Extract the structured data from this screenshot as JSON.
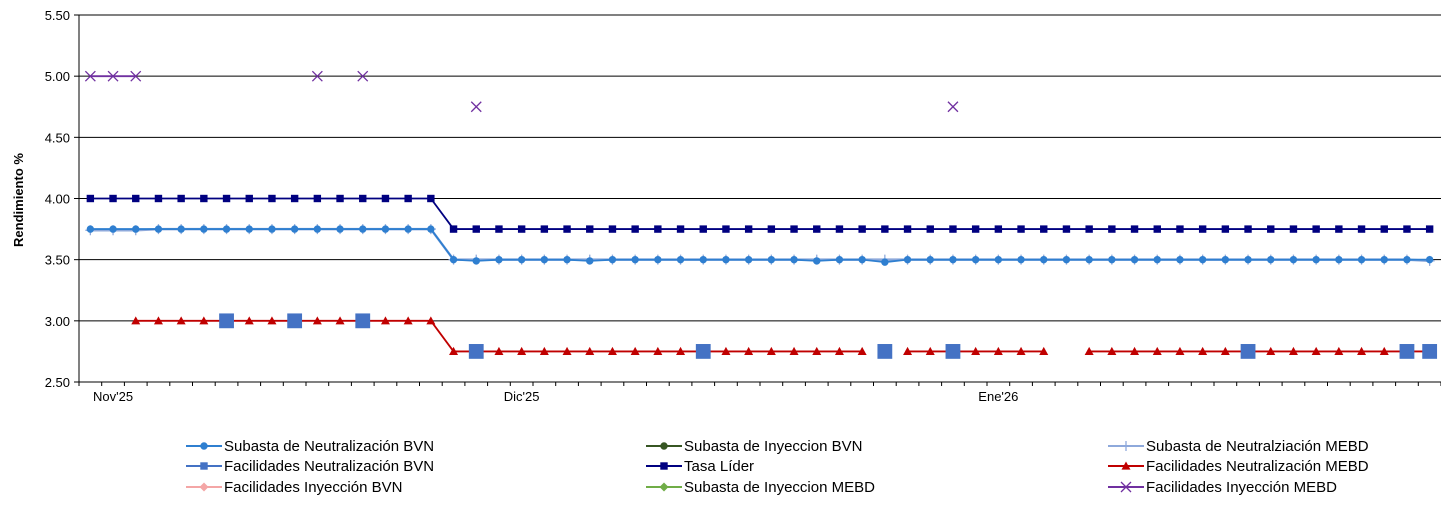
{
  "chart_data": {
    "type": "line",
    "ylabel": "Rendimiento %",
    "xlabel": "",
    "ylim": [
      2.5,
      5.5
    ],
    "yticks": [
      "5.50",
      "5.00",
      "4.50",
      "4.00",
      "3.50",
      "3.00",
      "2.50"
    ],
    "x_labels": [
      {
        "label": "Nov'25",
        "index": 1
      },
      {
        "label": "Dic'25",
        "index": 19
      },
      {
        "label": "Ene'26",
        "index": 40
      }
    ],
    "n_points": 60,
    "series": [
      {
        "name": "Subasta de Neutralización BVN",
        "color": "#2F7FD0",
        "marker": "circle",
        "values": [
          3.75,
          3.75,
          3.75,
          3.75,
          3.75,
          3.75,
          3.75,
          3.75,
          3.75,
          3.75,
          3.75,
          3.75,
          3.75,
          3.75,
          3.75,
          3.75,
          3.5,
          3.49,
          3.5,
          3.5,
          3.5,
          3.5,
          3.49,
          3.5,
          3.5,
          3.5,
          3.5,
          3.5,
          3.5,
          3.5,
          3.5,
          3.5,
          3.49,
          3.5,
          3.5,
          3.48,
          3.5,
          3.5,
          3.5,
          3.5,
          3.5,
          3.5,
          3.5,
          3.5,
          3.5,
          3.5,
          3.5,
          3.5,
          3.5,
          3.5,
          3.5,
          3.5,
          3.5,
          3.5,
          3.5,
          3.5,
          3.5,
          3.5,
          3.5,
          3.5
        ]
      },
      {
        "name": "Subasta de Inyeccion BVN",
        "color": "#375623",
        "marker": "circle",
        "values": []
      },
      {
        "name": "Subasta de Neutralziación MEBD",
        "color": "#8EA9DB",
        "marker": "plus",
        "values": [
          3.74,
          3.74,
          3.74,
          3.75,
          3.75,
          3.75,
          3.75,
          3.75,
          3.75,
          3.75,
          3.75,
          3.75,
          3.75,
          3.75,
          3.75,
          3.75,
          3.5,
          3.5,
          3.5,
          3.5,
          3.5,
          3.5,
          3.5,
          3.5,
          3.5,
          3.5,
          3.5,
          3.5,
          3.5,
          3.5,
          3.5,
          3.5,
          3.5,
          3.5,
          3.5,
          3.5,
          3.5,
          3.5,
          3.5,
          3.5,
          3.5,
          3.5,
          3.5,
          3.5,
          3.5,
          3.5,
          3.5,
          3.5,
          3.5,
          3.5,
          3.5,
          3.5,
          3.5,
          3.5,
          3.5,
          3.5,
          3.5,
          3.5,
          3.5,
          3.49
        ]
      },
      {
        "name": "Facilidades Neutralización BVN",
        "color": "#4472C4",
        "marker": "square",
        "values": [
          null,
          null,
          null,
          null,
          null,
          null,
          3.0,
          null,
          null,
          3.0,
          null,
          null,
          3.0,
          null,
          null,
          null,
          null,
          2.75,
          null,
          null,
          null,
          null,
          null,
          null,
          null,
          null,
          null,
          2.75,
          null,
          null,
          null,
          null,
          null,
          null,
          null,
          2.75,
          null,
          null,
          2.75,
          null,
          null,
          null,
          null,
          null,
          null,
          null,
          null,
          null,
          null,
          null,
          null,
          2.75,
          null,
          null,
          null,
          null,
          null,
          null,
          2.75,
          2.75
        ]
      },
      {
        "name": "Tasa Líder",
        "color": "#000080",
        "marker": "square",
        "values": [
          4.0,
          4.0,
          4.0,
          4.0,
          4.0,
          4.0,
          4.0,
          4.0,
          4.0,
          4.0,
          4.0,
          4.0,
          4.0,
          4.0,
          4.0,
          4.0,
          3.75,
          3.75,
          3.75,
          3.75,
          3.75,
          3.75,
          3.75,
          3.75,
          3.75,
          3.75,
          3.75,
          3.75,
          3.75,
          3.75,
          3.75,
          3.75,
          3.75,
          3.75,
          3.75,
          3.75,
          3.75,
          3.75,
          3.75,
          3.75,
          3.75,
          3.75,
          3.75,
          3.75,
          3.75,
          3.75,
          3.75,
          3.75,
          3.75,
          3.75,
          3.75,
          3.75,
          3.75,
          3.75,
          3.75,
          3.75,
          3.75,
          3.75,
          3.75,
          3.75
        ]
      },
      {
        "name": "Facilidades Neutralización MEBD",
        "color": "#C00000",
        "marker": "triangle",
        "values": [
          null,
          null,
          3.0,
          3.0,
          3.0,
          3.0,
          3.0,
          3.0,
          3.0,
          3.0,
          3.0,
          3.0,
          3.0,
          3.0,
          3.0,
          3.0,
          2.75,
          2.75,
          2.75,
          2.75,
          2.75,
          2.75,
          2.75,
          2.75,
          2.75,
          2.75,
          2.75,
          2.75,
          2.75,
          2.75,
          2.75,
          2.75,
          2.75,
          2.75,
          2.75,
          null,
          2.75,
          2.75,
          2.75,
          2.75,
          2.75,
          2.75,
          2.75,
          null,
          2.75,
          2.75,
          2.75,
          2.75,
          2.75,
          2.75,
          2.75,
          2.75,
          2.75,
          2.75,
          2.75,
          2.75,
          2.75,
          2.75,
          2.75,
          2.75
        ]
      },
      {
        "name": "Facilidades Inyección BVN",
        "color": "#F4A6A6",
        "marker": "diamond",
        "values": []
      },
      {
        "name": "Subasta de Inyeccion MEBD",
        "color": "#70AD47",
        "marker": "diamond",
        "values": []
      },
      {
        "name": "Facilidades Inyección MEBD",
        "color": "#7030A0",
        "marker": "x",
        "values": [
          5.0,
          5.0,
          5.0,
          null,
          null,
          null,
          null,
          null,
          null,
          null,
          5.0,
          null,
          5.0,
          null,
          null,
          null,
          null,
          4.75,
          null,
          null,
          null,
          null,
          null,
          null,
          null,
          null,
          null,
          null,
          null,
          null,
          null,
          null,
          null,
          null,
          null,
          null,
          null,
          null,
          4.75,
          null,
          null,
          null,
          null,
          null,
          null,
          null,
          null,
          null,
          null,
          null,
          null,
          null,
          null,
          null,
          null,
          null,
          null,
          null,
          null,
          null
        ]
      }
    ],
    "legend": "bottom",
    "grid": "horizontal"
  }
}
